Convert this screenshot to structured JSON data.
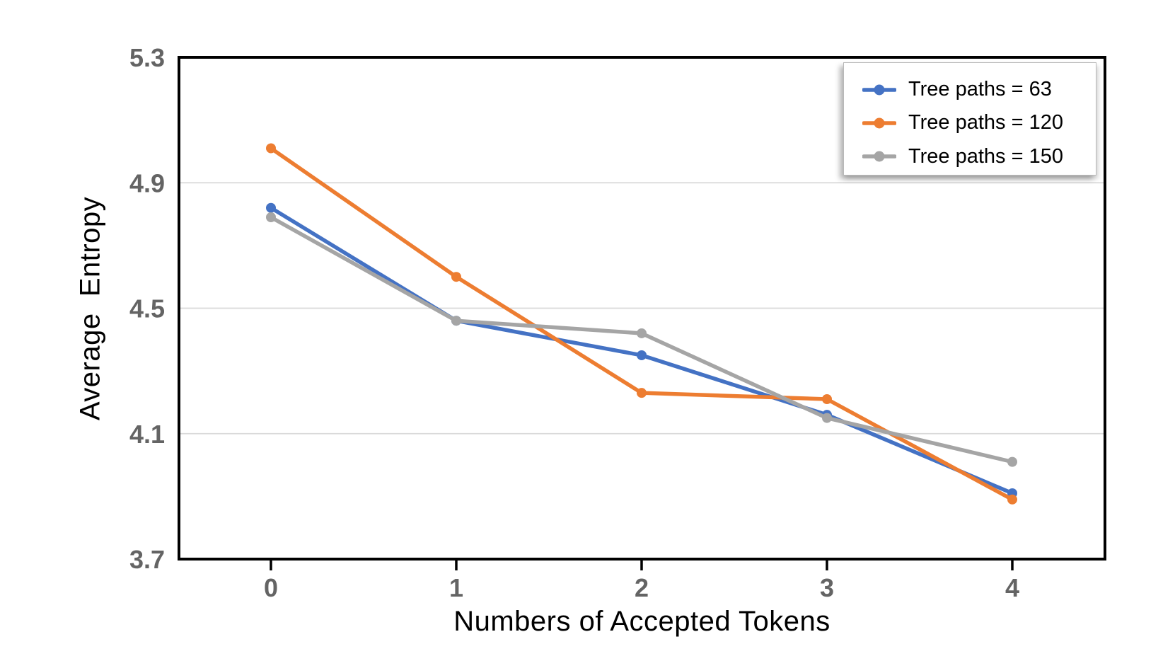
{
  "chart_data": {
    "type": "line",
    "title": "",
    "xlabel": "Numbers of Accepted Tokens",
    "ylabel": "Average  Entropy",
    "x": [
      0,
      1,
      2,
      3,
      4
    ],
    "xtick_labels": [
      "0",
      "1",
      "2",
      "3",
      "4"
    ],
    "yticks": [
      3.7,
      4.1,
      4.5,
      4.9,
      5.3
    ],
    "ytick_labels": [
      "3.7",
      "4.1",
      "4.5",
      "4.9",
      "5.3"
    ],
    "ylim": [
      3.7,
      5.3
    ],
    "grid": "horizontal",
    "legend_position": "top-right",
    "series": [
      {
        "name": "Tree paths = 63",
        "color": "#4472C4",
        "values": [
          4.82,
          4.46,
          4.35,
          4.16,
          3.91
        ]
      },
      {
        "name": "Tree paths = 120",
        "color": "#ED7D31",
        "values": [
          5.01,
          4.6,
          4.23,
          4.21,
          3.89
        ]
      },
      {
        "name": "Tree paths = 150",
        "color": "#A5A5A5",
        "values": [
          4.79,
          4.46,
          4.42,
          4.15,
          4.01
        ]
      }
    ],
    "colors": {
      "background": "#ffffff",
      "plot_border": "#000000",
      "gridline": "#d9d9d9",
      "tick_label": "#646464",
      "axis_title": "#000000"
    }
  }
}
